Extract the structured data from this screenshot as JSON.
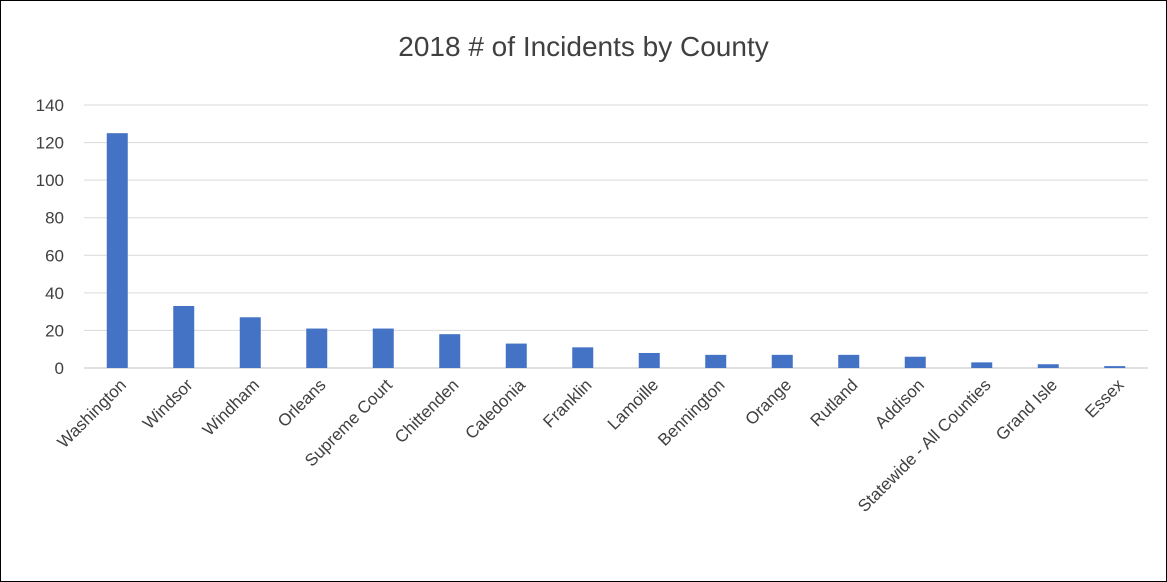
{
  "chart_data": {
    "type": "bar",
    "title": "2018 # of Incidents by County",
    "xlabel": "",
    "ylabel": "",
    "ylim": [
      0,
      140
    ],
    "yticks": [
      0,
      20,
      40,
      60,
      80,
      100,
      120,
      140
    ],
    "grid": true,
    "legend": "none",
    "bar_color": "#4472C4",
    "categories": [
      "Washington",
      "Windsor",
      "Windham",
      "Orleans",
      "Supreme Court",
      "Chittenden",
      "Caledonia",
      "Franklin",
      "Lamoille",
      "Bennington",
      "Orange",
      "Rutland",
      "Addison",
      "Statewide - All Counties",
      "Grand Isle",
      "Essex"
    ],
    "values": [
      125,
      33,
      27,
      21,
      21,
      18,
      13,
      11,
      8,
      7,
      7,
      7,
      6,
      3,
      2,
      1
    ]
  }
}
